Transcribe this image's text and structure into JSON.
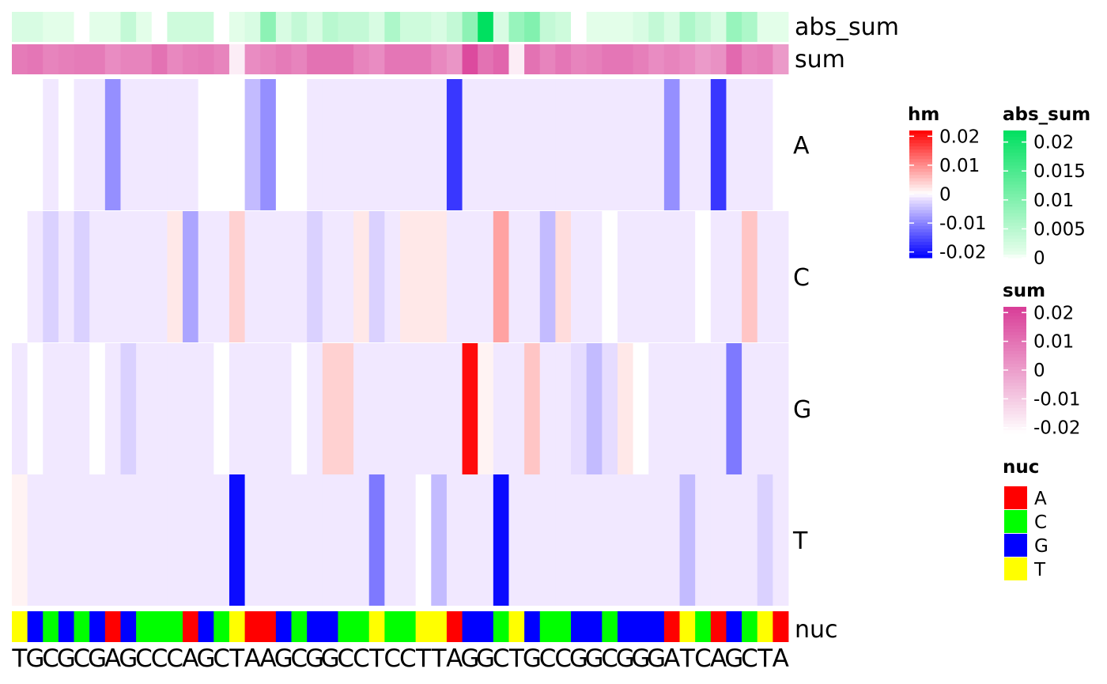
{
  "chart_data": {
    "type": "heatmap",
    "sequence": [
      "T",
      "G",
      "C",
      "G",
      "C",
      "G",
      "A",
      "G",
      "C",
      "C",
      "C",
      "A",
      "G",
      "C",
      "T",
      "A",
      "A",
      "G",
      "C",
      "G",
      "G",
      "C",
      "C",
      "T",
      "C",
      "C",
      "T",
      "T",
      "A",
      "G",
      "G",
      "C",
      "T",
      "G",
      "C",
      "C",
      "G",
      "G",
      "C",
      "G",
      "G",
      "G",
      "A",
      "T",
      "C",
      "A",
      "G",
      "C",
      "T",
      "A"
    ],
    "rows": [
      "A",
      "C",
      "G",
      "T"
    ],
    "row_labels": {
      "abs_sum": "abs_sum",
      "sum": "sum",
      "nuc": "nuc"
    },
    "hm": [
      [
        0,
        0,
        -0.001,
        0,
        -0.001,
        -0.001,
        -0.009,
        -0.001,
        -0.001,
        -0.001,
        -0.001,
        -0.001,
        0,
        0,
        0,
        -0.005,
        -0.009,
        0,
        0,
        -0.001,
        -0.001,
        -0.001,
        -0.001,
        -0.001,
        -0.001,
        -0.001,
        -0.001,
        -0.001,
        -0.017,
        -0.001,
        -0.001,
        -0.001,
        -0.001,
        -0.001,
        -0.001,
        -0.001,
        -0.001,
        -0.001,
        -0.001,
        -0.001,
        -0.001,
        -0.001,
        -0.009,
        -0.001,
        -0.001,
        -0.017,
        -0.001,
        -0.001,
        -0.001,
        0
      ],
      [
        0,
        -0.001,
        -0.003,
        -0.001,
        -0.003,
        -0.001,
        -0.001,
        -0.001,
        -0.001,
        -0.001,
        0.002,
        -0.007,
        -0.001,
        -0.001,
        0.004,
        -0.001,
        -0.001,
        -0.001,
        -0.001,
        -0.003,
        -0.001,
        -0.001,
        0.002,
        -0.003,
        -0.001,
        0.002,
        0.002,
        0.002,
        -0.001,
        -0.001,
        -0.001,
        0.008,
        -0.001,
        -0.001,
        -0.005,
        0.003,
        -0.001,
        -0.001,
        0,
        -0.001,
        -0.001,
        -0.001,
        -0.001,
        -0.001,
        0,
        -0.001,
        -0.001,
        0.005,
        -0.001,
        -0.001
      ],
      [
        -0.001,
        0,
        -0.001,
        -0.001,
        -0.001,
        0,
        -0.001,
        -0.003,
        -0.001,
        -0.001,
        -0.001,
        -0.001,
        -0.001,
        0,
        -0.001,
        -0.001,
        -0.001,
        -0.001,
        0,
        -0.001,
        0.004,
        0.004,
        -0.001,
        -0.001,
        -0.001,
        -0.001,
        -0.001,
        -0.001,
        -0.001,
        0.021,
        0.001,
        -0.001,
        -0.001,
        0.005,
        -0.001,
        -0.001,
        -0.002,
        -0.005,
        -0.002,
        0.002,
        0,
        -0.001,
        -0.001,
        -0.001,
        -0.001,
        -0.001,
        -0.011,
        -0.001,
        -0.001,
        -0.001
      ],
      [
        0.001,
        -0.001,
        -0.001,
        -0.001,
        -0.001,
        -0.001,
        -0.001,
        -0.001,
        -0.001,
        -0.001,
        -0.001,
        -0.001,
        -0.001,
        -0.001,
        -0.021,
        -0.001,
        -0.001,
        -0.001,
        -0.001,
        -0.001,
        -0.001,
        -0.001,
        -0.001,
        -0.011,
        -0.001,
        -0.001,
        0,
        -0.005,
        -0.001,
        -0.001,
        -0.001,
        -0.021,
        -0.001,
        -0.001,
        -0.001,
        -0.001,
        -0.001,
        -0.001,
        -0.001,
        -0.001,
        -0.001,
        -0.001,
        -0.001,
        -0.005,
        -0.001,
        -0.001,
        -0.001,
        -0.001,
        -0.003,
        -0.001
      ]
    ],
    "abs_sum": [
      0.002,
      0.002,
      0.001,
      0.001,
      0,
      0.001,
      0.001,
      0.004,
      0.001,
      0,
      0.003,
      0.003,
      0.003,
      0,
      0.001,
      0.002,
      0.009,
      0.002,
      0.004,
      0.002,
      0.005,
      0.004,
      0.004,
      0.002,
      0.006,
      0.003,
      0.003,
      0.002,
      0.004,
      0.009,
      0.022,
      0.002,
      0.008,
      0.01,
      0.004,
      0.003,
      0,
      0.001,
      0.001,
      0.001,
      0.002,
      0.004,
      0.002,
      0.006,
      0.004,
      0.002,
      0.008,
      0.006,
      0.001,
      0.001
    ],
    "sum": [
      0.008,
      0.009,
      0.006,
      0.007,
      0.008,
      0.008,
      0.004,
      0.006,
      0.006,
      0.01,
      0.005,
      0.007,
      0.008,
      0.006,
      -0.018,
      0.004,
      0.006,
      0.008,
      0.006,
      0.01,
      0.01,
      0.01,
      0.006,
      0.004,
      0.009,
      0.009,
      0.009,
      0.005,
      0.002,
      0.019,
      0.01,
      0.013,
      -0.018,
      0.01,
      0.006,
      0.009,
      0.006,
      0.007,
      0.009,
      0.009,
      0.007,
      0.004,
      0.006,
      0.004,
      0.001,
      0.003,
      0.012,
      0.006,
      0.007,
      0.001
    ],
    "legends": {
      "hm": {
        "title": "hm",
        "ticks": [
          "0.02",
          "0.01",
          "0",
          "-0.01",
          "-0.02"
        ],
        "tick_values": [
          0.02,
          0.01,
          0,
          -0.01,
          -0.02
        ],
        "range": [
          -0.022,
          0.022
        ],
        "colors": {
          "low": "#0000FF",
          "mid": "#FFFFFF",
          "high": "#FF0000"
        }
      },
      "abs_sum": {
        "title": "abs_sum",
        "ticks": [
          "0.02",
          "0.015",
          "0.01",
          "0.005",
          "0"
        ],
        "tick_values": [
          0.02,
          0.015,
          0.01,
          0.005,
          0
        ],
        "range": [
          0,
          0.022
        ],
        "colors": {
          "low": "#FFFFFF",
          "high": "#00E060"
        }
      },
      "sum": {
        "title": "sum",
        "ticks": [
          "0.02",
          "0.01",
          "0",
          "-0.01",
          "-0.02"
        ],
        "tick_values": [
          0.02,
          0.01,
          0,
          -0.01,
          -0.02
        ],
        "range": [
          -0.022,
          0.022
        ],
        "colors": {
          "low": "#FFFFFF",
          "high": "#D93D97"
        }
      },
      "nuc": {
        "title": "nuc",
        "entries": [
          {
            "label": "A",
            "color": "#FF0000"
          },
          {
            "label": "C",
            "color": "#00FF00"
          },
          {
            "label": "G",
            "color": "#0000FF"
          },
          {
            "label": "T",
            "color": "#FFFF00"
          }
        ]
      }
    },
    "grid": false
  }
}
